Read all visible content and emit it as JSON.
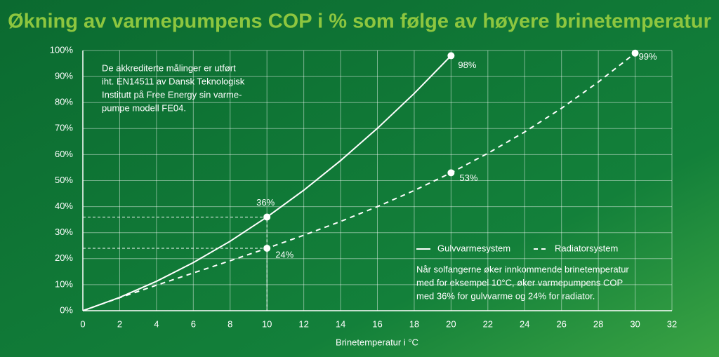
{
  "chart_data": {
    "type": "line",
    "title": "Økning av varmepumpens COP i % som følge av høyere brinetemperatur",
    "x_label": "Brinetemperatur i °C",
    "x": [
      0,
      2,
      4,
      6,
      8,
      10,
      12,
      14,
      16,
      18,
      20,
      22,
      24,
      26,
      28,
      30
    ],
    "series": [
      {
        "name": "Gulvvarmesystem",
        "color": "#ffffff",
        "dash": false,
        "values": [
          0,
          5.1,
          11.3,
          18.5,
          26.7,
          36,
          46.3,
          57.7,
          70.1,
          83.5,
          98,
          null,
          null,
          null,
          null,
          null
        ]
      },
      {
        "name": "Radiatorsystem",
        "color": "#ffffff",
        "dash": true,
        "values": [
          0,
          5,
          9.8,
          14.5,
          19.2,
          24,
          29,
          34.3,
          40,
          46.2,
          53,
          60.5,
          68.7,
          77.8,
          87.9,
          99
        ]
      }
    ],
    "points": [
      {
        "x": 10,
        "y": 36,
        "label": "36%"
      },
      {
        "x": 10,
        "y": 24,
        "label": "24%"
      },
      {
        "x": 20,
        "y": 98,
        "label": "98%"
      },
      {
        "x": 20,
        "y": 53,
        "label": "53%"
      },
      {
        "x": 30,
        "y": 99,
        "label": "99%"
      }
    ],
    "xlim": [
      0,
      32
    ],
    "xticks": [
      0,
      2,
      4,
      6,
      8,
      10,
      12,
      14,
      16,
      18,
      20,
      22,
      24,
      26,
      28,
      30,
      32
    ],
    "ylim": [
      0,
      100
    ],
    "yticks": [
      {
        "value": 0,
        "label": "0%"
      },
      {
        "value": 10,
        "label": "10%"
      },
      {
        "value": 20,
        "label": "20%"
      },
      {
        "value": 30,
        "label": "30%"
      },
      {
        "value": 40,
        "label": "40%"
      },
      {
        "value": 50,
        "label": "50%"
      },
      {
        "value": 60,
        "label": "60%"
      },
      {
        "value": 70,
        "label": "70%"
      },
      {
        "value": 80,
        "label": "80%"
      },
      {
        "value": 90,
        "label": "90%"
      },
      {
        "value": 100,
        "label": "100%"
      }
    ],
    "grid": true,
    "note": [
      "De akkrediterte målinger er utført",
      "iht. EN14511 av Dansk Teknologisk",
      "Institutt på Free Energy sin varme-",
      "pumpe modell FE04."
    ],
    "caption": [
      "Når solfangerne øker innkommende brinetemperatur",
      "med for eksempel 10°C, øker varmepumpens COP",
      "med 36% for gulvvarme og 24% for radiator."
    ]
  }
}
